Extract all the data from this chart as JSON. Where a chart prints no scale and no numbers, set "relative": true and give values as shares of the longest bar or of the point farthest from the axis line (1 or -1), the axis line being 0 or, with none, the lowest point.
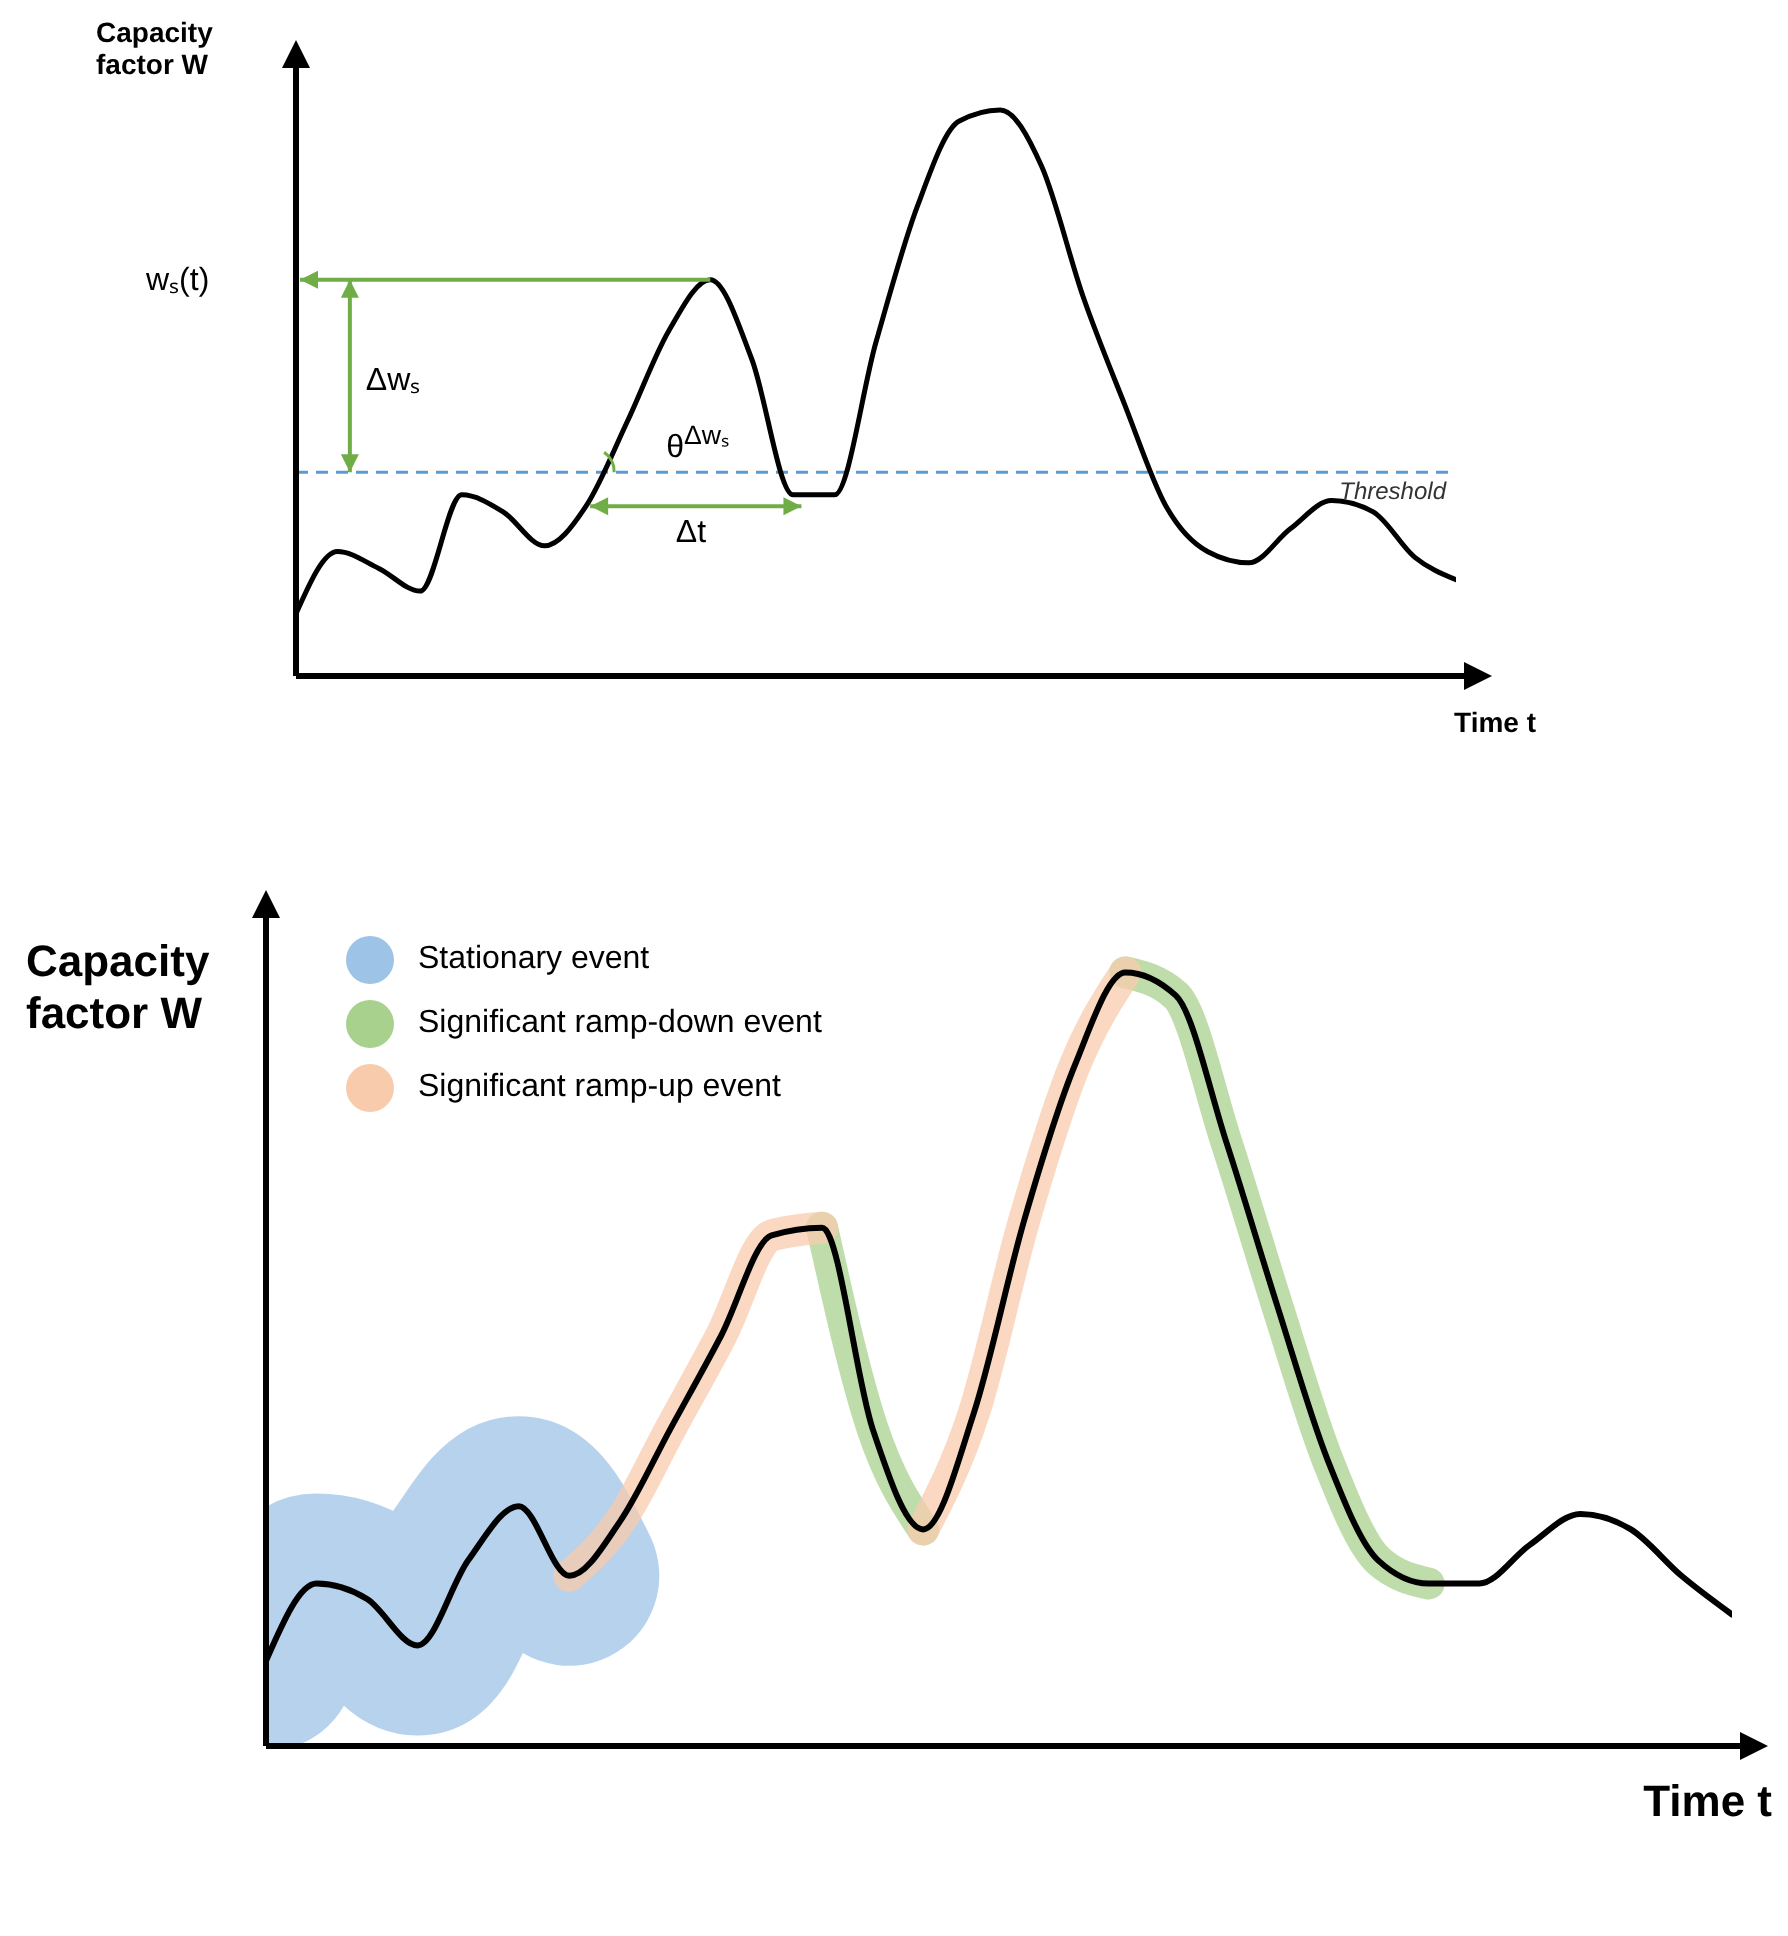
{
  "chart_data": [
    {
      "type": "line",
      "ylabel": "Capacity factor W",
      "xlabel": "Time t",
      "relative": true,
      "categories": [
        null,
        null,
        null,
        null,
        null,
        null,
        null,
        null,
        null,
        null,
        null,
        null,
        null,
        null,
        null,
        null,
        null,
        null,
        null,
        null,
        null,
        null,
        null,
        null,
        null,
        null,
        null,
        null,
        null
      ],
      "series": [
        {
          "color": "#000000",
          "values": [
            0.11,
            0.22,
            0.19,
            0.15,
            0.32,
            0.29,
            0.23,
            0.3,
            0.45,
            0.61,
            0.7,
            0.56,
            0.32,
            0.32,
            0.59,
            0.83,
            0.98,
            1,
            0.9,
            0.67,
            0.48,
            0.3,
            0.22,
            0.2,
            0.26,
            0.31,
            0.29,
            0.21,
            0.17
          ]
        }
      ],
      "ref_lines": [
        {
          "axis": "y",
          "value": 0.36,
          "label": "Threshold",
          "color": "#5b9bd5",
          "line_style": "dashed"
        }
      ],
      "annotations": [
        "wₛ(t)",
        "Δwₛ",
        "θ$^{Δwₛ}$",
        "Δt"
      ]
    },
    {
      "type": "line",
      "ylabel": "Capacity factor W",
      "xlabel": "Time t",
      "relative": true,
      "legend": "top left",
      "categories": [
        null,
        null,
        null,
        null,
        null,
        null,
        null,
        null,
        null,
        null,
        null,
        null,
        null,
        null,
        null,
        null,
        null,
        null,
        null,
        null,
        null,
        null,
        null,
        null,
        null,
        null,
        null,
        null,
        null,
        null
      ],
      "series": [
        {
          "name": "Stationary event",
          "color": "#9dc3e6",
          "values": [
            0.11,
            0.21,
            0.19,
            0.13,
            0.24,
            0.31,
            0.22,
            null,
            null,
            null,
            null,
            null,
            null,
            null,
            null,
            null,
            null,
            null,
            null,
            null,
            null,
            null,
            null,
            null,
            null,
            null,
            null,
            null,
            null,
            null
          ]
        },
        {
          "name": "Significant ramp-down event",
          "color": "#a9d18e",
          "values": [
            null,
            null,
            null,
            null,
            null,
            null,
            null,
            null,
            null,
            null,
            null,
            0.67,
            0.41,
            0.28,
            null,
            null,
            null,
            1,
            0.97,
            0.78,
            0.57,
            0.37,
            0.24,
            0.21,
            null,
            null,
            null,
            null,
            null,
            null
          ]
        },
        {
          "name": "Significant ramp-up event",
          "color": "#f8cbad",
          "values": [
            null,
            null,
            null,
            null,
            null,
            null,
            0.22,
            0.29,
            0.41,
            0.53,
            0.66,
            0.67,
            null,
            0.28,
            0.43,
            0.68,
            0.88,
            1,
            null,
            null,
            null,
            null,
            null,
            null,
            null,
            null,
            null,
            null,
            null,
            null
          ]
        },
        {
          "color": "#000000",
          "values": [
            0.11,
            0.21,
            0.19,
            0.13,
            0.24,
            0.31,
            0.22,
            0.29,
            0.41,
            0.53,
            0.66,
            0.67,
            0.41,
            0.28,
            0.43,
            0.68,
            0.88,
            1,
            0.97,
            0.78,
            0.57,
            0.37,
            0.24,
            0.21,
            0.21,
            0.26,
            0.3,
            0.28,
            0.22,
            0.17
          ]
        }
      ]
    }
  ]
}
